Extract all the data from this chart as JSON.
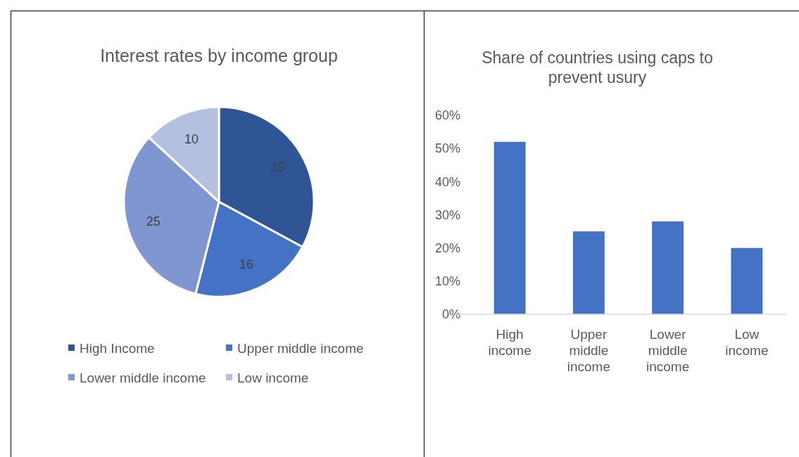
{
  "chart_data": [
    {
      "type": "pie",
      "title": "Interest rates by income group",
      "categories": [
        "High Income",
        "Upper middle income",
        "Lower middle income",
        "Low income"
      ],
      "values": [
        25,
        16,
        25,
        10
      ],
      "colors": [
        "#2f5597",
        "#4472c4",
        "#7f96d0",
        "#b4c0e0"
      ],
      "data_labels": true,
      "legend": "bottom"
    },
    {
      "type": "bar",
      "title": "Share of countries using caps to prevent usury",
      "categories": [
        "High income",
        "Upper middle income",
        "Lower middle income",
        "Low income"
      ],
      "values": [
        52,
        25,
        28,
        20
      ],
      "color": "#4472c4",
      "ylim": [
        0,
        60
      ],
      "yticks": [
        {
          "value": 0,
          "label": "0%"
        },
        {
          "value": 10,
          "label": "10%"
        },
        {
          "value": 20,
          "label": "20%"
        },
        {
          "value": 30,
          "label": "30%"
        },
        {
          "value": 40,
          "label": "40%"
        },
        {
          "value": 50,
          "label": "50%"
        },
        {
          "value": 60,
          "label": "60%"
        }
      ],
      "grid": false
    }
  ]
}
